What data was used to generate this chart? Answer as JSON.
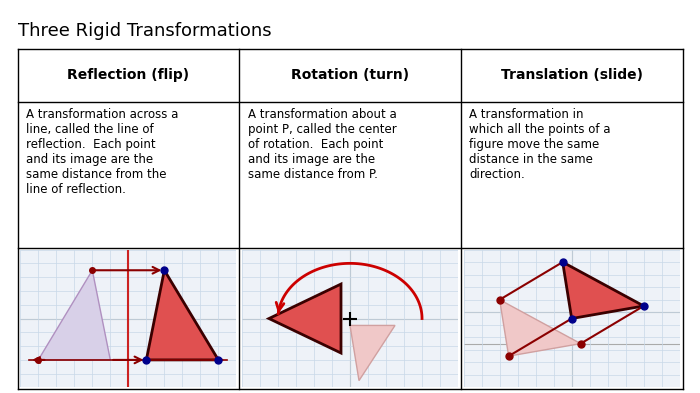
{
  "title": "Three Rigid Transformations",
  "title_fontsize": 13,
  "col_headers": [
    "Reflection (flip)",
    "Rotation (turn)",
    "Translation (slide)"
  ],
  "col_header_fontsize": 10,
  "descriptions": [
    "A transformation across a\nline, called the line of\nreflection.  Each point\nand its image are the\nsame distance from the\nline of reflection.",
    "A transformation about a\npoint P, called the center\nof rotation.  Each point\nand its image are the\nsame distance from P.",
    "A transformation in\nwhich all the points of a\nfigure move the same\ndistance in the same\ndirection."
  ],
  "desc_fontsize": 8.5,
  "background_color": "#ffffff",
  "grid_color": "#c8d8e8",
  "figure_color_solid": "#e05050",
  "figure_color_ghost": "#f0c8c8",
  "dark_outline": "#3a0000",
  "blue_dot": "#00008b",
  "dark_red_dot": "#8b0000",
  "arrow_color": "#cc0000",
  "ghost_edge": "#d0a0a0",
  "ghost_face_lavender": "#d8d0e8"
}
